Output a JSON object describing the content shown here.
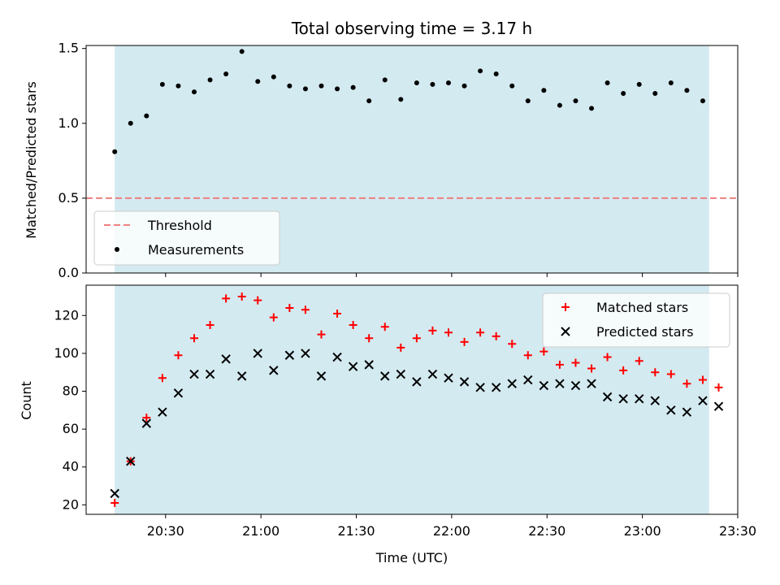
{
  "chart_data": [
    {
      "type": "scatter",
      "title": "Total observing time = 3.17 h",
      "xlabel": "",
      "ylabel": "Matched/Predicted stars",
      "ylim": [
        0,
        1.52
      ],
      "xlim": [
        "20:05",
        "23:30"
      ],
      "yticks": [
        0,
        0.5,
        1.0,
        1.5
      ],
      "ytick_labels": [
        "0.0",
        "0.5",
        "1.0",
        "1.5"
      ],
      "shaded_span": [
        "20:14",
        "23:21"
      ],
      "shade_color": "#d3eaf0",
      "legend_placement": "lower-left",
      "threshold": {
        "name": "Threshold",
        "y": 0.5,
        "color": "#f08080",
        "style": "dashed"
      },
      "series": [
        {
          "name": "Measurements",
          "color": "#000000",
          "marker": "dot",
          "x": [
            "20:14",
            "20:19",
            "20:24",
            "20:29",
            "20:34",
            "20:39",
            "20:44",
            "20:49",
            "20:54",
            "20:59",
            "21:04",
            "21:09",
            "21:14",
            "21:19",
            "21:24",
            "21:29",
            "21:34",
            "21:39",
            "21:44",
            "21:49",
            "21:54",
            "21:59",
            "22:04",
            "22:09",
            "22:14",
            "22:19",
            "22:24",
            "22:29",
            "22:34",
            "22:39",
            "22:44",
            "22:49",
            "22:54",
            "22:59",
            "23:04",
            "23:09",
            "23:14",
            "23:19"
          ],
          "y": [
            0.81,
            1.0,
            1.05,
            1.26,
            1.25,
            1.21,
            1.29,
            1.33,
            1.48,
            1.28,
            1.31,
            1.25,
            1.23,
            1.25,
            1.23,
            1.24,
            1.15,
            1.29,
            1.16,
            1.27,
            1.26,
            1.27,
            1.25,
            1.35,
            1.33,
            1.25,
            1.15,
            1.22,
            1.12,
            1.15,
            1.1,
            1.27,
            1.2,
            1.26,
            1.2,
            1.27,
            1.22,
            1.15
          ]
        }
      ]
    },
    {
      "type": "scatter",
      "title": "",
      "xlabel": "Time (UTC)",
      "ylabel": "Count",
      "ylim": [
        15,
        136
      ],
      "xlim": [
        "20:05",
        "23:30"
      ],
      "yticks": [
        20,
        40,
        60,
        80,
        100,
        120
      ],
      "ytick_labels": [
        "20",
        "40",
        "60",
        "80",
        "100",
        "120"
      ],
      "xticks": [
        "20:30",
        "21:00",
        "21:30",
        "22:00",
        "22:30",
        "23:00",
        "23:30"
      ],
      "shaded_span": [
        "20:14",
        "23:21"
      ],
      "shade_color": "#d3eaf0",
      "legend_placement": "top-right",
      "series": [
        {
          "name": "Matched stars",
          "color": "#ff0000",
          "marker": "plus",
          "x": [
            "20:14",
            "20:19",
            "20:24",
            "20:29",
            "20:34",
            "20:39",
            "20:44",
            "20:49",
            "20:54",
            "20:59",
            "21:04",
            "21:09",
            "21:14",
            "21:19",
            "21:24",
            "21:29",
            "21:34",
            "21:39",
            "21:44",
            "21:49",
            "21:54",
            "21:59",
            "22:04",
            "22:09",
            "22:14",
            "22:19",
            "22:24",
            "22:29",
            "22:34",
            "22:39",
            "22:44",
            "22:49",
            "22:54",
            "22:59",
            "23:04",
            "23:09",
            "23:14",
            "23:19",
            "23:24"
          ],
          "y": [
            21,
            43,
            66,
            87,
            99,
            108,
            115,
            129,
            130,
            128,
            119,
            124,
            123,
            110,
            121,
            115,
            108,
            114,
            103,
            108,
            112,
            111,
            106,
            111,
            109,
            105,
            99,
            101,
            94,
            95,
            92,
            98,
            91,
            96,
            90,
            89,
            84,
            86,
            82
          ]
        },
        {
          "name": "Predicted stars",
          "color": "#000000",
          "marker": "x",
          "x": [
            "20:14",
            "20:19",
            "20:24",
            "20:29",
            "20:34",
            "20:39",
            "20:44",
            "20:49",
            "20:54",
            "20:59",
            "21:04",
            "21:09",
            "21:14",
            "21:19",
            "21:24",
            "21:29",
            "21:34",
            "21:39",
            "21:44",
            "21:49",
            "21:54",
            "21:59",
            "22:04",
            "22:09",
            "22:14",
            "22:19",
            "22:24",
            "22:29",
            "22:34",
            "22:39",
            "22:44",
            "22:49",
            "22:54",
            "22:59",
            "23:04",
            "23:09",
            "23:14",
            "23:19",
            "23:24"
          ],
          "y": [
            26,
            43,
            63,
            69,
            79,
            89,
            89,
            97,
            88,
            100,
            91,
            99,
            100,
            88,
            98,
            93,
            94,
            88,
            89,
            85,
            89,
            87,
            85,
            82,
            82,
            84,
            86,
            83,
            84,
            83,
            84,
            77,
            76,
            76,
            75,
            70,
            69,
            75,
            72
          ]
        }
      ]
    }
  ]
}
